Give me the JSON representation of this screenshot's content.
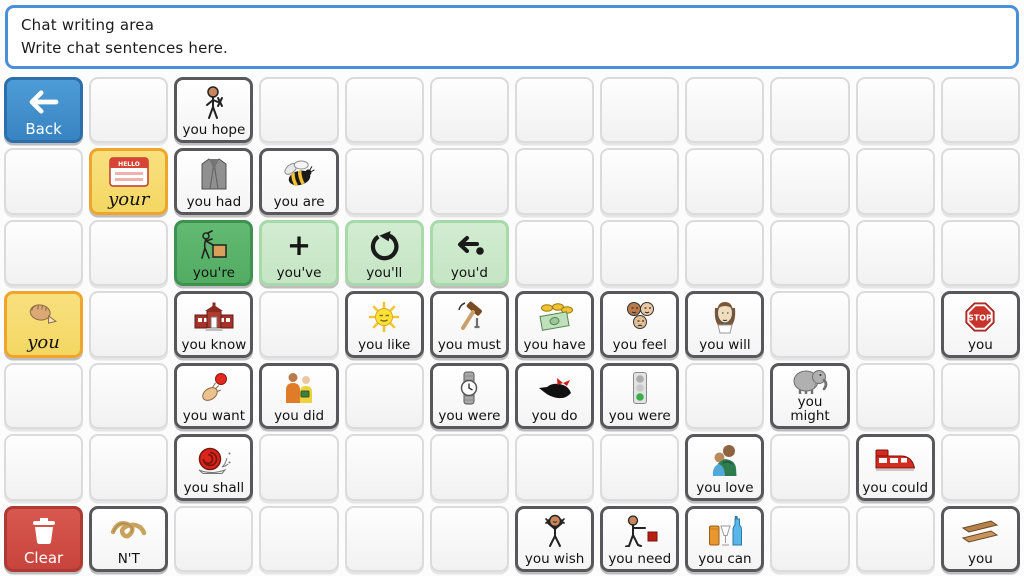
{
  "chat_area": {
    "line1": "Chat writing area",
    "line2": "Write chat sentences here."
  },
  "colors": {
    "chat_border": "#4A90D9",
    "back_blue": "#3884C2",
    "clear_red": "#C7443D",
    "category_yellow": "#F4D763",
    "category_yellow_border": "#EFA42C",
    "contraction_green_dark": "#52AC62",
    "contraction_green_light": "#C5E5C4",
    "word_cell_border": "#58585A",
    "empty_cell_border": "#DBDBDB"
  },
  "grid": {
    "columns": 12,
    "rows": 7,
    "cells": [
      [
        {
          "label": "Back",
          "icon": "back-arrow-icon",
          "style": "nav-back"
        },
        null,
        {
          "label": "you hope",
          "icon": "fingers-crossed-icon",
          "style": "word"
        },
        null,
        null,
        null,
        null,
        null,
        null,
        null,
        null,
        null
      ],
      [
        null,
        {
          "label": "your",
          "icon": "name-tag-icon",
          "style": "yellow"
        },
        {
          "label": "you had",
          "icon": "jacket-icon",
          "style": "word"
        },
        {
          "label": "you are",
          "icon": "bee-icon",
          "style": "word"
        },
        null,
        null,
        null,
        null,
        null,
        null,
        null,
        null
      ],
      [
        null,
        null,
        {
          "label": "you're",
          "icon": "push-box-icon",
          "style": "green-dark"
        },
        {
          "label": "you've",
          "icon": "plus-icon",
          "style": "green-light"
        },
        {
          "label": "you'll",
          "icon": "rotate-arrow-icon",
          "style": "green-light"
        },
        {
          "label": "you'd",
          "icon": "back-arrow-dot-icon",
          "style": "green-light"
        },
        null,
        null,
        null,
        null,
        null,
        null
      ],
      [
        {
          "label": "you",
          "icon": "pointing-hand-icon",
          "style": "yellow"
        },
        null,
        {
          "label": "you know",
          "icon": "school-icon",
          "style": "word"
        },
        null,
        {
          "label": "you like",
          "icon": "sun-icon",
          "style": "word"
        },
        {
          "label": "you must",
          "icon": "hammer-icon",
          "style": "word"
        },
        {
          "label": "you have",
          "icon": "money-icon",
          "style": "word"
        },
        {
          "label": "you feel",
          "icon": "faces-icon",
          "style": "word"
        },
        {
          "label": "you will",
          "icon": "shakespeare-icon",
          "style": "word"
        },
        null,
        null,
        {
          "label": "you",
          "icon": "stop-icon",
          "style": "word"
        }
      ],
      [
        null,
        null,
        {
          "label": "you want",
          "icon": "reach-ball-icon",
          "style": "word"
        },
        {
          "label": "you did",
          "icon": "two-people-icon",
          "style": "word"
        },
        null,
        {
          "label": "you were",
          "icon": "watch-icon",
          "style": "word"
        },
        {
          "label": "you do",
          "icon": "pointing-finger-bow-icon",
          "style": "word"
        },
        {
          "label": "you were",
          "icon": "traffic-light-icon",
          "style": "word"
        },
        null,
        {
          "label": "you\nmight",
          "icon": "elephant-icon",
          "style": "word"
        },
        null,
        null
      ],
      [
        null,
        null,
        {
          "label": "you shall",
          "icon": "snail-icon",
          "style": "word"
        },
        null,
        null,
        null,
        null,
        null,
        {
          "label": "you love",
          "icon": "hug-icon",
          "style": "word"
        },
        null,
        {
          "label": "you could",
          "icon": "train-icon",
          "style": "word"
        },
        null
      ],
      [
        {
          "label": "Clear",
          "icon": "trash-icon",
          "style": "nav-clear"
        },
        {
          "label": "N'T",
          "icon": "knot-icon",
          "style": "word"
        },
        null,
        null,
        null,
        null,
        {
          "label": "you wish",
          "icon": "wish-icon",
          "style": "word"
        },
        {
          "label": "you need",
          "icon": "need-icon",
          "style": "word"
        },
        {
          "label": "you can",
          "icon": "drinks-icon",
          "style": "word"
        },
        null,
        null,
        {
          "label": "you",
          "icon": "wood-icon",
          "style": "word"
        }
      ]
    ]
  }
}
